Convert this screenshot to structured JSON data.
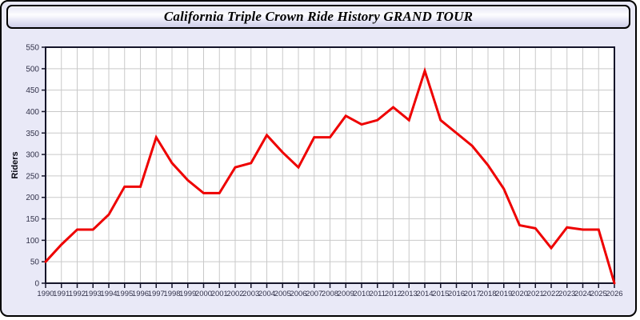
{
  "window": {
    "title": "California Triple Crown Ride History GRAND TOUR"
  },
  "chart_data": {
    "type": "line",
    "title": "California Triple Crown Ride History GRAND TOUR",
    "xlabel": "",
    "ylabel": "Riders",
    "x": [
      1990,
      1991,
      1992,
      1993,
      1994,
      1995,
      1996,
      1997,
      1998,
      1999,
      2000,
      2001,
      2002,
      2003,
      2004,
      2005,
      2006,
      2007,
      2008,
      2009,
      2010,
      2011,
      2012,
      2013,
      2014,
      2015,
      2016,
      2017,
      2018,
      2019,
      2020,
      2021,
      2022,
      2023,
      2024,
      2025,
      2026
    ],
    "series": [
      {
        "name": "Riders",
        "color": "#ee0000",
        "values": [
          50,
          90,
          125,
          125,
          160,
          225,
          225,
          340,
          280,
          240,
          210,
          210,
          270,
          280,
          345,
          305,
          270,
          340,
          340,
          390,
          370,
          380,
          410,
          380,
          495,
          380,
          350,
          320,
          275,
          220,
          135,
          128,
          82,
          130,
          125,
          125,
          0
        ]
      }
    ],
    "ylim": [
      0,
      550
    ],
    "ytick_step": 50,
    "grid": true,
    "legend": "none",
    "colors": {
      "plot_background": "#ffffff",
      "page_background": "#e9e9f7",
      "gridline": "#c9c9c9",
      "axis": "#15152a",
      "tick_label": "#32324a",
      "line": "#ee0000"
    }
  }
}
